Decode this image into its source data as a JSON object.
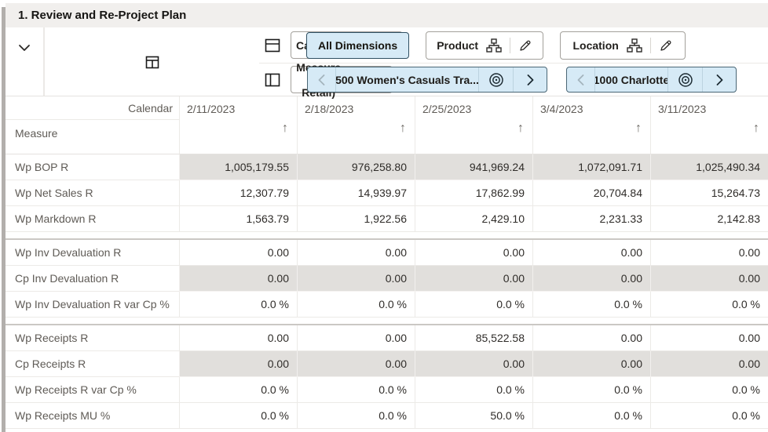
{
  "title": "1. Review and Re-Project Plan",
  "toolbar": {
    "row_axis_label": "Calendar",
    "col_axis_label": "Measure (1. Retail)",
    "all_dimensions_label": "All Dimensions",
    "product_label": "Product",
    "location_label": "Location",
    "product_selection": "500 Women's Casuals Tra...",
    "location_selection": "1000 Charlotte"
  },
  "grid": {
    "corner_label": "Calendar",
    "axis_label": "Measure",
    "columns": [
      "2/11/2023",
      "2/18/2023",
      "2/25/2023",
      "3/4/2023",
      "3/11/2023"
    ],
    "rows": [
      {
        "label": "Wp BOP R",
        "shaded": true,
        "group_start": false,
        "values": [
          "1,005,179.55",
          "976,258.80",
          "941,969.24",
          "1,072,091.71",
          "1,025,490.34"
        ]
      },
      {
        "label": "Wp Net Sales R",
        "shaded": false,
        "group_start": false,
        "values": [
          "12,307.79",
          "14,939.97",
          "17,862.99",
          "20,704.84",
          "15,264.73"
        ]
      },
      {
        "label": "Wp Markdown R",
        "shaded": false,
        "group_start": false,
        "values": [
          "1,563.79",
          "1,922.56",
          "2,429.10",
          "2,231.33",
          "2,142.83"
        ]
      },
      {
        "label": "Wp Inv Devaluation R",
        "shaded": false,
        "group_start": true,
        "values": [
          "0.00",
          "0.00",
          "0.00",
          "0.00",
          "0.00"
        ]
      },
      {
        "label": "Cp Inv Devaluation R",
        "shaded": true,
        "group_start": false,
        "values": [
          "0.00",
          "0.00",
          "0.00",
          "0.00",
          "0.00"
        ]
      },
      {
        "label": "Wp Inv Devaluation R var Cp %",
        "shaded": false,
        "group_start": false,
        "values": [
          "0.0 %",
          "0.0 %",
          "0.0 %",
          "0.0 %",
          "0.0 %"
        ]
      },
      {
        "label": "Wp Receipts R",
        "shaded": false,
        "group_start": true,
        "values": [
          "0.00",
          "0.00",
          "85,522.58",
          "0.00",
          "0.00"
        ]
      },
      {
        "label": "Cp Receipts R",
        "shaded": true,
        "group_start": false,
        "values": [
          "0.00",
          "0.00",
          "0.00",
          "0.00",
          "0.00"
        ]
      },
      {
        "label": "Wp Receipts R var Cp %",
        "shaded": false,
        "group_start": false,
        "values": [
          "0.0 %",
          "0.0 %",
          "0.0 %",
          "0.0 %",
          "0.0 %"
        ]
      },
      {
        "label": "Wp Receipts MU %",
        "shaded": false,
        "group_start": false,
        "values": [
          "0.0 %",
          "0.0 %",
          "50.0 %",
          "0.0 %",
          "0.0 %"
        ]
      }
    ]
  },
  "icons": {
    "sort_ascending": "↑",
    "collapse": "chevron-down",
    "row_axis": "split-horizontal-square",
    "column_axis": "split-vertical-square",
    "page_layout": "pane-square",
    "hierarchy": "org-chart",
    "edit": "pencil",
    "target": "bullseye",
    "prev": "chevron-left",
    "next": "chevron-right"
  },
  "colors": {
    "accent_fill": "#d6eaf6",
    "accent_border": "#2f4f62",
    "shaded_cell": "#e1dfdc",
    "titlebar_bg": "#f1efed"
  }
}
